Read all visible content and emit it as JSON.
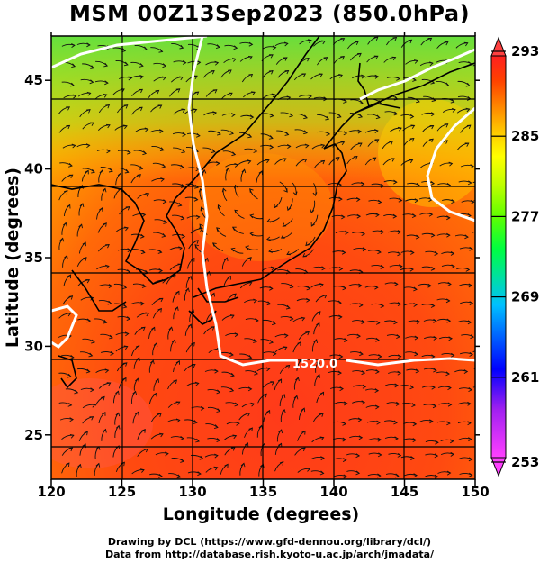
{
  "title": "MSM 00Z13Sep2023 (850.0hPa)",
  "x_axis": {
    "label": "Longitude (degrees)",
    "ticks": [
      "120",
      "125",
      "130",
      "135",
      "140",
      "145",
      "150"
    ],
    "range": [
      120,
      150
    ]
  },
  "y_axis": {
    "label": "Latitude  (degrees)",
    "ticks": [
      "25",
      "30",
      "35",
      "40",
      "45"
    ],
    "range": [
      22.5,
      47.5
    ]
  },
  "colorbar": {
    "labels": [
      "293",
      "285",
      "277",
      "269",
      "261",
      "253"
    ],
    "range": [
      253,
      293
    ],
    "colors": [
      "#ff40ff",
      "#a020f0",
      "#0000ff",
      "#0060ff",
      "#00c0ff",
      "#00e0a0",
      "#00ff40",
      "#60ff00",
      "#c0ff00",
      "#ffff00",
      "#ffc000",
      "#ff8000",
      "#ff4000",
      "#ff2020"
    ]
  },
  "contour": {
    "label": "1520.0",
    "color": "#ffffff"
  },
  "credits": {
    "line1": "Drawing by DCL (https://www.gfd-dennou.org/library/dcl/)",
    "line2": "Data from http://database.rish.kyoto-u.ac.jp/arch/jmadata/"
  }
}
